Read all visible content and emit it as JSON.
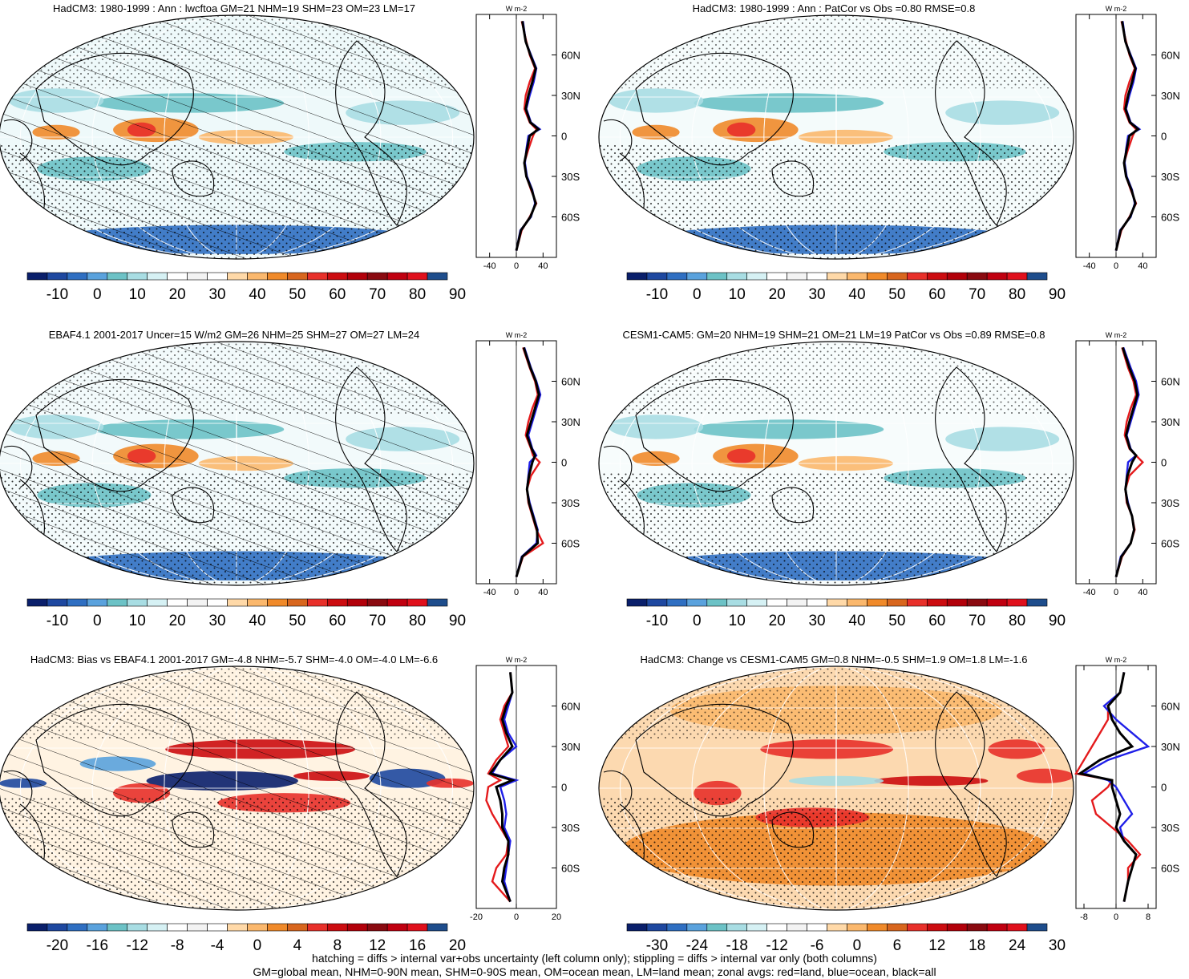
{
  "panels": [
    {
      "title": "HadCM3: 1980-1999 : Ann : lwcftoa GM=21 NHM=19 SHM=23 OM=23 LM=17",
      "hatching": true,
      "colorbar_labels": [
        "-10",
        "0",
        "10",
        "20",
        "30",
        "40",
        "50",
        "60",
        "70",
        "80",
        "90"
      ],
      "zonal_ticks": [
        "-40",
        "0",
        "40"
      ],
      "zonal_range": [
        -60,
        60
      ],
      "lat_labels": [
        "60N",
        "30N",
        "0",
        "30S",
        "60S"
      ]
    },
    {
      "title": "HadCM3: 1980-1999 : Ann : PatCor vs Obs =0.80 RMSE=0.8",
      "hatching": false,
      "colorbar_labels": [
        "-10",
        "0",
        "10",
        "20",
        "30",
        "40",
        "50",
        "60",
        "70",
        "80",
        "90"
      ],
      "zonal_ticks": [
        "-40",
        "0",
        "40"
      ],
      "zonal_range": [
        -60,
        60
      ],
      "lat_labels": [
        "60N",
        "30N",
        "0",
        "30S",
        "60S"
      ]
    },
    {
      "title": "EBAF4.1 2001-2017 Uncer=15 W/m2 GM=26 NHM=25 SHM=27 OM=27 LM=24",
      "hatching": true,
      "colorbar_labels": [
        "-10",
        "0",
        "10",
        "20",
        "30",
        "40",
        "50",
        "60",
        "70",
        "80",
        "90"
      ],
      "zonal_ticks": [
        "-40",
        "0",
        "40"
      ],
      "zonal_range": [
        -60,
        60
      ],
      "lat_labels": [
        "60N",
        "30N",
        "0",
        "30S",
        "60S"
      ]
    },
    {
      "title": "CESM1-CAM5: GM=20 NHM=19 SHM=21 OM=21 LM=19 PatCor vs Obs =0.89 RMSE=0.8",
      "hatching": false,
      "colorbar_labels": [
        "-10",
        "0",
        "10",
        "20",
        "30",
        "40",
        "50",
        "60",
        "70",
        "80",
        "90"
      ],
      "zonal_ticks": [
        "-40",
        "0",
        "40"
      ],
      "zonal_range": [
        -60,
        60
      ],
      "lat_labels": [
        "60N",
        "30N",
        "0",
        "30S",
        "60S"
      ]
    },
    {
      "title": "HadCM3: Bias vs EBAF4.1 2001-2017 GM=-4.8 NHM=-5.7 SHM=-4.0 OM=-4.0 LM=-6.6",
      "hatching": true,
      "colorbar_labels": [
        "-20",
        "-16",
        "-12",
        "-8",
        "-4",
        "0",
        "4",
        "8",
        "12",
        "16",
        "20"
      ],
      "zonal_ticks": [
        "-20",
        "0",
        "20"
      ],
      "zonal_range": [
        -20,
        20
      ],
      "lat_labels": [
        "60N",
        "30N",
        "0",
        "30S",
        "60S"
      ]
    },
    {
      "title": "HadCM3: Change vs CESM1-CAM5 GM=0.8 NHM=-0.5 SHM=1.9 OM=1.8 LM=-1.6",
      "hatching": false,
      "colorbar_labels": [
        "-30",
        "-24",
        "-18",
        "-12",
        "-6",
        "0",
        "6",
        "12",
        "18",
        "24",
        "30"
      ],
      "zonal_ticks": [
        "-8",
        "0",
        "8"
      ],
      "zonal_range": [
        -10,
        10
      ],
      "lat_labels": [
        "60N",
        "30N",
        "0",
        "30S",
        "60S"
      ]
    }
  ],
  "zonal_unit": "W m-2",
  "colorbar_colors": [
    "#0a1f6b",
    "#1e48a0",
    "#2f6fc2",
    "#5aa2dd",
    "#6cc2c6",
    "#a8dde3",
    "#d6f1f4",
    "#ffffff",
    "#f3f3f3",
    "#ffffff",
    "#ffd9a8",
    "#fbb86d",
    "#f08a2a",
    "#d8661e",
    "#e8302a",
    "#cc0c10",
    "#b2000a",
    "#8a0a10",
    "#c00010",
    "#e0101c",
    "#1e4d8c"
  ],
  "series_colors": {
    "land": "#e41a1c",
    "ocean": "#1f1fe8",
    "all": "#000000"
  },
  "chart_data": {
    "type": "heatmap",
    "description_of_zonal_profiles": "zonal averages by latitude (deg), values in W m-2",
    "latitudes": [
      -85,
      -70,
      -60,
      -50,
      -40,
      -30,
      -20,
      -10,
      0,
      5,
      10,
      20,
      30,
      40,
      50,
      60,
      70,
      85
    ],
    "profiles": [
      {
        "panel": 1,
        "series": [
          {
            "name": "land",
            "values": [
              0,
              8,
              20,
              30,
              22,
              15,
              12,
              18,
              25,
              30,
              20,
              12,
              14,
              20,
              28,
              20,
              15,
              8
            ]
          },
          {
            "name": "ocean",
            "values": [
              0,
              6,
              22,
              28,
              24,
              16,
              13,
              15,
              18,
              35,
              22,
              15,
              20,
              26,
              30,
              22,
              14,
              10
            ]
          },
          {
            "name": "all",
            "values": [
              0,
              7,
              21,
              29,
              23,
              15,
              12,
              16,
              20,
              33,
              21,
              14,
              18,
              24,
              29,
              21,
              14,
              9
            ]
          }
        ]
      },
      {
        "panel": 2,
        "series": [
          {
            "name": "land",
            "values": [
              0,
              8,
              20,
              30,
              22,
              15,
              12,
              18,
              25,
              30,
              20,
              12,
              14,
              20,
              28,
              20,
              15,
              8
            ]
          },
          {
            "name": "ocean",
            "values": [
              0,
              6,
              22,
              28,
              24,
              16,
              13,
              15,
              18,
              35,
              22,
              15,
              20,
              26,
              30,
              22,
              14,
              10
            ]
          },
          {
            "name": "all",
            "values": [
              0,
              7,
              21,
              29,
              23,
              15,
              12,
              16,
              20,
              33,
              21,
              14,
              18,
              24,
              29,
              21,
              14,
              9
            ]
          }
        ]
      },
      {
        "panel": 3,
        "series": [
          {
            "name": "land",
            "values": [
              0,
              10,
              40,
              30,
              24,
              18,
              16,
              22,
              35,
              25,
              22,
              14,
              18,
              24,
              32,
              28,
              20,
              10
            ]
          },
          {
            "name": "ocean",
            "values": [
              0,
              8,
              30,
              32,
              26,
              20,
              16,
              18,
              20,
              30,
              24,
              18,
              24,
              30,
              36,
              30,
              22,
              12
            ]
          },
          {
            "name": "all",
            "values": [
              0,
              9,
              32,
              31,
              25,
              19,
              16,
              19,
              24,
              28,
              23,
              16,
              22,
              28,
              34,
              29,
              21,
              11
            ]
          }
        ]
      },
      {
        "panel": 4,
        "series": [
          {
            "name": "land",
            "values": [
              0,
              9,
              22,
              28,
              24,
              16,
              14,
              20,
              40,
              30,
              20,
              13,
              16,
              22,
              30,
              26,
              18,
              9
            ]
          },
          {
            "name": "ocean",
            "values": [
              0,
              7,
              22,
              27,
              24,
              18,
              14,
              16,
              18,
              30,
              22,
              16,
              22,
              28,
              34,
              30,
              22,
              11
            ]
          },
          {
            "name": "all",
            "values": [
              0,
              8,
              22,
              27,
              24,
              17,
              14,
              17,
              24,
              30,
              21,
              15,
              20,
              26,
              32,
              28,
              20,
              10
            ]
          }
        ]
      },
      {
        "panel": 5,
        "series": [
          {
            "name": "land",
            "values": [
              -3,
              -12,
              -10,
              -5,
              -4,
              -8,
              -12,
              -15,
              -14,
              -8,
              -14,
              -10,
              -4,
              -6,
              -8,
              -6,
              -2,
              -3
            ]
          },
          {
            "name": "ocean",
            "values": [
              -3,
              -6,
              -5,
              -4,
              -3,
              -6,
              -5,
              -6,
              -8,
              0,
              -12,
              -8,
              0,
              -4,
              -6,
              -4,
              -2,
              -3
            ]
          },
          {
            "name": "all",
            "values": [
              -3,
              -7,
              -6,
              -4,
              -4,
              -7,
              -7,
              -8,
              -10,
              -2,
              -13,
              -8,
              -2,
              -5,
              -7,
              -5,
              -2,
              -3
            ]
          }
        ]
      },
      {
        "panel": 6,
        "series": [
          {
            "name": "land",
            "values": [
              2,
              3,
              3,
              6,
              3,
              -1,
              -5,
              -6,
              -2,
              -1,
              -10,
              -8,
              -6,
              -4,
              -2,
              -2,
              1,
              2
            ]
          },
          {
            "name": "ocean",
            "values": [
              2,
              3,
              4,
              5,
              2,
              1,
              4,
              2,
              0,
              -2,
              -8,
              -2,
              8,
              4,
              0,
              -3,
              1,
              2
            ]
          },
          {
            "name": "all",
            "values": [
              2,
              3,
              4,
              5,
              2,
              0,
              1,
              0,
              -1,
              -1,
              -9,
              -4,
              4,
              1,
              -1,
              -2,
              1,
              2
            ]
          }
        ]
      }
    ]
  },
  "footer": {
    "line1": "hatching = diffs > internal var+obs uncertainty (left column only); stippling = diffs > internal var only (both columns)",
    "line2": "GM=global mean, NHM=0-90N mean, SHM=0-90S mean, OM=ocean mean, LM=land mean; zonal avgs: red=land, blue=ocean, black=all"
  }
}
